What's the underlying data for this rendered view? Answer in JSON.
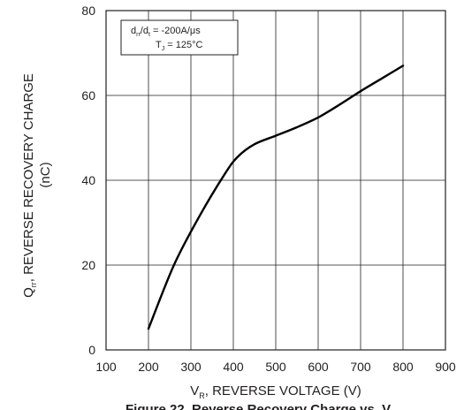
{
  "chart_data": {
    "type": "line",
    "title": "",
    "xlabel": {
      "main": "V",
      "sub": "R",
      "rest": ", REVERSE VOLTAGE (V)"
    },
    "ylabel": {
      "main": "Q",
      "sub": "rr",
      "rest": ", REVERSE RECOVERY CHARGE",
      "line2": "(nC)"
    },
    "xlim": [
      100,
      900
    ],
    "ylim": [
      0,
      80
    ],
    "xticks": [
      100,
      200,
      300,
      400,
      500,
      600,
      700,
      800,
      900
    ],
    "yticks": [
      0,
      20,
      40,
      60,
      80
    ],
    "grid": true,
    "legend": {
      "placement": "top-left",
      "lines": [
        {
          "parts": [
            [
              "d",
              ""
            ],
            [
              "rr",
              "sub"
            ],
            [
              "/d",
              ""
            ],
            [
              "t",
              "sub"
            ],
            [
              " = -200A/μs",
              ""
            ]
          ]
        },
        {
          "parts": [
            [
              "T",
              ""
            ],
            [
              "J",
              "sub"
            ],
            [
              " = 125°C",
              ""
            ]
          ]
        }
      ]
    },
    "series": [
      {
        "x": [
          200,
          260,
          320,
          380,
          410,
          450,
          500,
          550,
          600,
          650,
          700,
          750,
          800
        ],
        "values": [
          5,
          20,
          31.5,
          41.5,
          45.5,
          48.5,
          50.5,
          52.5,
          54.8,
          57.8,
          61,
          64,
          67
        ]
      }
    ],
    "caption": "Figure 22. Reverse Recovery Charge vs. V",
    "color": "#000000"
  }
}
